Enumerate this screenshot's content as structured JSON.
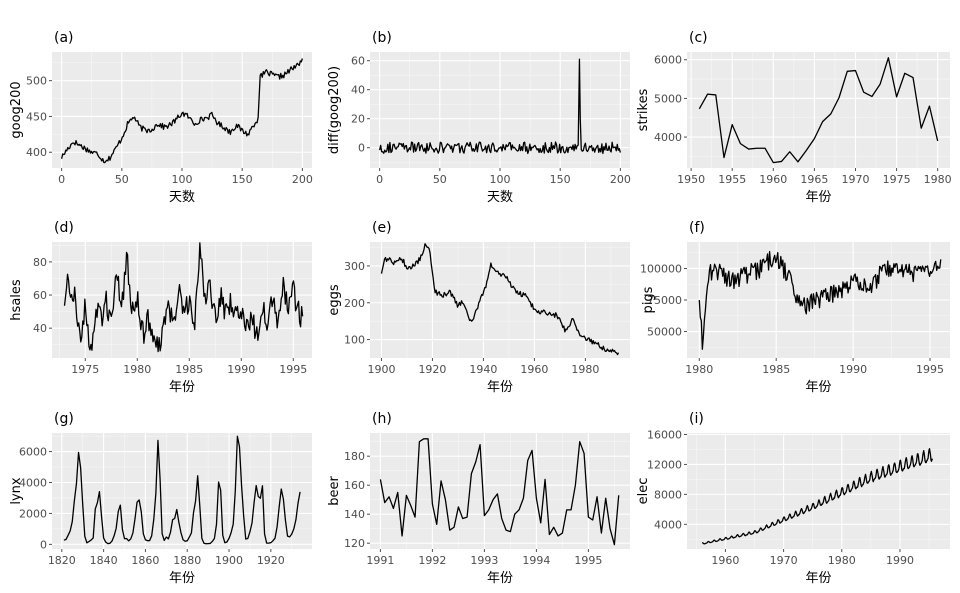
{
  "chart_data": [
    {
      "type": "line",
      "title": "(a)",
      "xlabel": "天数",
      "ylabel": "goog200",
      "xlim": [
        -8,
        208
      ],
      "ylim": [
        378,
        540
      ],
      "xticks": [
        0,
        50,
        100,
        150,
        200
      ],
      "xtick_labels": [
        "0",
        "50",
        "100",
        "150",
        "200"
      ],
      "yticks": [
        400,
        450,
        500
      ],
      "ytick_labels": [
        "400",
        "450",
        "500"
      ],
      "x_knots": [
        0,
        5,
        10,
        15,
        20,
        25,
        30,
        35,
        40,
        45,
        50,
        55,
        60,
        65,
        70,
        75,
        80,
        85,
        90,
        95,
        100,
        105,
        110,
        115,
        120,
        125,
        130,
        135,
        140,
        145,
        150,
        155,
        160,
        163,
        165,
        170,
        175,
        180,
        185,
        190,
        195,
        200
      ],
      "y_knots": [
        393,
        405,
        415,
        410,
        405,
        400,
        398,
        388,
        392,
        405,
        420,
        440,
        450,
        435,
        430,
        432,
        440,
        435,
        438,
        445,
        455,
        450,
        440,
        445,
        448,
        452,
        440,
        435,
        428,
        438,
        430,
        425,
        440,
        445,
        505,
        512,
        508,
        505,
        508,
        515,
        520,
        530
      ],
      "noise": 4
    },
    {
      "type": "line",
      "title": "(b)",
      "xlabel": "天数",
      "ylabel": "diff(goog200)",
      "xlim": [
        -8,
        208
      ],
      "ylim": [
        -14,
        66
      ],
      "xticks": [
        0,
        50,
        100,
        150,
        200
      ],
      "xtick_labels": [
        "0",
        "50",
        "100",
        "150",
        "200"
      ],
      "yticks": [
        0,
        20,
        40,
        60
      ],
      "ytick_labels": [
        "0",
        "20",
        "40",
        "60"
      ],
      "x_knots": [
        0,
        165,
        166,
        167,
        200
      ],
      "y_knots": [
        0,
        0,
        61,
        0,
        0
      ],
      "noise": 4
    },
    {
      "type": "line",
      "title": "(c)",
      "xlabel": "年份",
      "ylabel": "strikes",
      "xlim": [
        1949.5,
        1981.5
      ],
      "ylim": [
        3200,
        6200
      ],
      "xticks": [
        1950,
        1955,
        1960,
        1965,
        1970,
        1975,
        1980
      ],
      "xtick_labels": [
        "1950",
        "1955",
        "1960",
        "1965",
        "1970",
        "1975",
        "1980"
      ],
      "yticks": [
        4000,
        5000,
        6000
      ],
      "ytick_labels": [
        "4000",
        "5000",
        "6000"
      ],
      "x": [
        1951,
        1952,
        1953,
        1954,
        1955,
        1956,
        1957,
        1958,
        1959,
        1960,
        1961,
        1962,
        1963,
        1964,
        1965,
        1966,
        1967,
        1968,
        1969,
        1970,
        1971,
        1972,
        1973,
        1974,
        1975,
        1976,
        1977,
        1978,
        1979,
        1980
      ],
      "values": [
        4730,
        5110,
        5090,
        3470,
        4320,
        3830,
        3690,
        3710,
        3710,
        3340,
        3370,
        3620,
        3360,
        3650,
        3960,
        4400,
        4600,
        5020,
        5700,
        5720,
        5160,
        5050,
        5370,
        6050,
        5040,
        5650,
        5540,
        4230,
        4800,
        3900
      ]
    },
    {
      "type": "line",
      "title": "(d)",
      "xlabel": "年份",
      "ylabel": "hsales",
      "xlim": [
        1971.8,
        1996.8
      ],
      "ylim": [
        22,
        92
      ],
      "xticks": [
        1975,
        1980,
        1985,
        1990,
        1995
      ],
      "xtick_labels": [
        "1975",
        "1980",
        "1985",
        "1990",
        "1995"
      ],
      "yticks": [
        40,
        60,
        80
      ],
      "ytick_labels": [
        "40",
        "60",
        "80"
      ],
      "x_knots": [
        1973,
        1973.3,
        1974,
        1974.6,
        1975,
        1975.5,
        1976,
        1976.6,
        1977,
        1977.5,
        1978,
        1978.6,
        1979,
        1979.5,
        1980,
        1980.6,
        1981,
        1981.5,
        1982,
        1982.5,
        1983,
        1983.6,
        1984,
        1984.5,
        1985,
        1985.5,
        1986,
        1986.6,
        1987,
        1987.5,
        1988,
        1988.5,
        1989,
        1989.5,
        1990,
        1990.6,
        1991,
        1991.5,
        1992,
        1992.5,
        1993,
        1993.5,
        1994,
        1994.5,
        1995,
        1995.5,
        1995.9
      ],
      "y_knots": [
        55,
        68,
        60,
        30,
        55,
        25,
        50,
        45,
        58,
        42,
        70,
        55,
        82,
        50,
        60,
        35,
        45,
        30,
        28,
        40,
        50,
        45,
        62,
        52,
        57,
        40,
        88,
        55,
        66,
        46,
        60,
        48,
        56,
        45,
        52,
        38,
        48,
        35,
        55,
        45,
        60,
        45,
        65,
        55,
        62,
        50,
        45
      ],
      "noise": 7
    },
    {
      "type": "line",
      "title": "(e)",
      "xlabel": "年份",
      "ylabel": "eggs",
      "xlim": [
        1895.5,
        1997.5
      ],
      "ylim": [
        50,
        365
      ],
      "xticks": [
        1900,
        1920,
        1940,
        1960,
        1980
      ],
      "xtick_labels": [
        "1900",
        "1920",
        "1940",
        "1960",
        "1980"
      ],
      "yticks": [
        100,
        200,
        300
      ],
      "ytick_labels": [
        "100",
        "200",
        "300"
      ],
      "x_knots": [
        1900,
        1901,
        1903,
        1905,
        1908,
        1910,
        1913,
        1916,
        1917,
        1919,
        1921,
        1924,
        1927,
        1930,
        1932,
        1934,
        1936,
        1938,
        1941,
        1943,
        1946,
        1949,
        1951,
        1954,
        1957,
        1960,
        1963,
        1966,
        1969,
        1972,
        1975,
        1978,
        1981,
        1984,
        1987,
        1990,
        1993
      ],
      "y_knots": [
        280,
        315,
        320,
        308,
        320,
        295,
        300,
        330,
        355,
        340,
        230,
        220,
        230,
        190,
        205,
        160,
        150,
        195,
        245,
        305,
        280,
        270,
        245,
        225,
        220,
        180,
        175,
        170,
        165,
        125,
        155,
        115,
        100,
        90,
        75,
        70,
        62
      ],
      "noise": 7
    },
    {
      "type": "line",
      "title": "(f)",
      "xlabel": "年份",
      "ylabel": "pigs",
      "xlim": [
        1979.2,
        1996.3
      ],
      "ylim": [
        29000,
        121000
      ],
      "xticks": [
        1980,
        1985,
        1990,
        1995
      ],
      "xtick_labels": [
        "1980",
        "1985",
        "1990",
        "1995"
      ],
      "yticks": [
        50000,
        75000,
        100000
      ],
      "ytick_labels": [
        "50000",
        "75000",
        "100000"
      ],
      "x_knots": [
        1980,
        1980.1,
        1980.2,
        1980.35,
        1980.6,
        1981,
        1982,
        1983,
        1984,
        1984.8,
        1985.3,
        1986,
        1986.4,
        1987,
        1987.5,
        1988,
        1988.8,
        1989.5,
        1990,
        1991,
        1992,
        1993,
        1994,
        1995,
        1995.7
      ],
      "y_knots": [
        75000,
        60000,
        35000,
        70000,
        95000,
        100000,
        90000,
        95000,
        100000,
        110000,
        102000,
        90000,
        75000,
        70000,
        75000,
        77000,
        80000,
        83000,
        92000,
        85000,
        98000,
        100000,
        95000,
        97000,
        100000
      ],
      "noise": 7500
    },
    {
      "type": "line",
      "title": "(g)",
      "xlabel": "年份",
      "ylabel": "lynx",
      "xlim": [
        1815.3,
        1939.7
      ],
      "ylim": [
        -300,
        7200
      ],
      "xticks": [
        1820,
        1840,
        1860,
        1880,
        1900,
        1920
      ],
      "xtick_labels": [
        "1820",
        "1840",
        "1860",
        "1880",
        "1900",
        "1920"
      ],
      "yticks": [
        0,
        2000,
        4000,
        6000
      ],
      "ytick_labels": [
        "0",
        "2000",
        "4000",
        "6000"
      ],
      "x": [
        1821,
        1822,
        1823,
        1824,
        1825,
        1826,
        1827,
        1828,
        1829,
        1830,
        1831,
        1832,
        1833,
        1834,
        1835,
        1836,
        1837,
        1838,
        1839,
        1840,
        1841,
        1842,
        1843,
        1844,
        1845,
        1846,
        1847,
        1848,
        1849,
        1850,
        1851,
        1852,
        1853,
        1854,
        1855,
        1856,
        1857,
        1858,
        1859,
        1860,
        1861,
        1862,
        1863,
        1864,
        1865,
        1866,
        1867,
        1868,
        1869,
        1870,
        1871,
        1872,
        1873,
        1874,
        1875,
        1876,
        1877,
        1878,
        1879,
        1880,
        1881,
        1882,
        1883,
        1884,
        1885,
        1886,
        1887,
        1888,
        1889,
        1890,
        1891,
        1892,
        1893,
        1894,
        1895,
        1896,
        1897,
        1898,
        1899,
        1900,
        1901,
        1902,
        1903,
        1904,
        1905,
        1906,
        1907,
        1908,
        1909,
        1910,
        1911,
        1912,
        1913,
        1914,
        1915,
        1916,
        1917,
        1918,
        1919,
        1920,
        1921,
        1922,
        1923,
        1924,
        1925,
        1926,
        1927,
        1928,
        1929,
        1930,
        1931,
        1932,
        1933,
        1934
      ],
      "values": [
        269,
        321,
        585,
        871,
        1475,
        2821,
        3928,
        5943,
        4950,
        2577,
        523,
        98,
        184,
        279,
        409,
        2285,
        2685,
        3409,
        1824,
        409,
        151,
        45,
        68,
        213,
        546,
        1033,
        2129,
        2536,
        957,
        361,
        377,
        225,
        360,
        731,
        1638,
        2725,
        2871,
        2119,
        684,
        299,
        236,
        245,
        552,
        1623,
        3311,
        6721,
        4254,
        687,
        255,
        473,
        358,
        784,
        1594,
        1676,
        2251,
        1426,
        756,
        299,
        201,
        229,
        469,
        736,
        2042,
        2811,
        4431,
        2511,
        389,
        73,
        39,
        49,
        59,
        188,
        377,
        1292,
        4031,
        3495,
        587,
        105,
        153,
        387,
        758,
        1307,
        3465,
        6991,
        6313,
        3794,
        1836,
        345,
        382,
        808,
        1388,
        2713,
        3800,
        3091,
        2985,
        3790,
        674,
        81,
        80,
        108,
        229,
        399,
        1132,
        2432,
        3574,
        2935,
        1537,
        529,
        485,
        662,
        1000,
        1590,
        2657,
        3396
      ]
    },
    {
      "type": "line",
      "title": "(h)",
      "xlabel": "年份",
      "ylabel": "beer",
      "xlim": [
        1990.8,
        1995.8
      ],
      "ylim": [
        116,
        196
      ],
      "xticks": [
        1991,
        1992,
        1993,
        1994,
        1995
      ],
      "xtick_labels": [
        "1991",
        "1992",
        "1993",
        "1994",
        "1995"
      ],
      "yticks": [
        120,
        140,
        160,
        180
      ],
      "ytick_labels": [
        "120",
        "140",
        "160",
        "180"
      ],
      "x_start": 1991.0,
      "x_step": 0.08333,
      "values": [
        164,
        148,
        152,
        144,
        155,
        125,
        153,
        146,
        138,
        190,
        192,
        192,
        147,
        133,
        163,
        150,
        129,
        131,
        145,
        137,
        138,
        168,
        176,
        188,
        139,
        143,
        150,
        154,
        137,
        129,
        128,
        140,
        143,
        151,
        177,
        184,
        151,
        134,
        164,
        126,
        131,
        125,
        127,
        143,
        143,
        160,
        190,
        182,
        138,
        136,
        152,
        127,
        151,
        130,
        119,
        153
      ]
    },
    {
      "type": "line",
      "title": "(i)",
      "xlabel": "年份",
      "ylabel": "elec",
      "xlim": [
        1953.4,
        1998.6
      ],
      "ylim": [
        700,
        16200
      ],
      "xticks": [
        1960,
        1970,
        1980,
        1990
      ],
      "xtick_labels": [
        "1960",
        "1970",
        "1980",
        "1990"
      ],
      "yticks": [
        4000,
        8000,
        12000,
        16000
      ],
      "ytick_labels": [
        "4000",
        "8000",
        "12000",
        "16000"
      ],
      "x_start": 1956.0,
      "x_step": 0.08333,
      "n": 476,
      "trend_knots": [
        [
          1956,
          1400
        ],
        [
          1965,
          2900
        ],
        [
          1975,
          6300
        ],
        [
          1985,
          10200
        ],
        [
          1995.6,
          13200
        ]
      ],
      "season_amp": 0.06
    }
  ]
}
